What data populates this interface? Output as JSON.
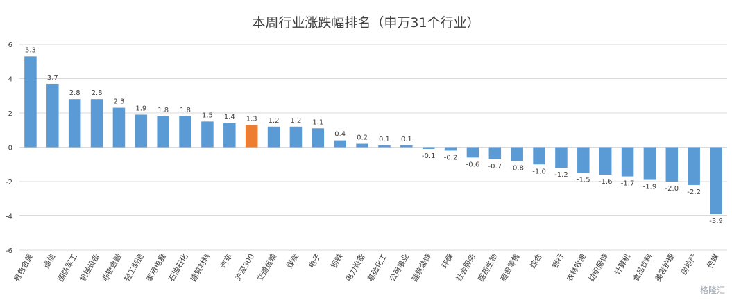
{
  "chart_data": {
    "type": "bar",
    "title": "本周行业涨跌幅排名（申万31个行业）",
    "xlabel": "",
    "ylabel": "",
    "ylim": [
      -6,
      6
    ],
    "yticks": [
      -6,
      -4,
      -2,
      0,
      2,
      4,
      6
    ],
    "grid": true,
    "legend": "none",
    "colors": {
      "default": "#5B9BD5",
      "highlight": "#ED7D31"
    },
    "highlight_category": "沪深300",
    "categories": [
      "有色金属",
      "通信",
      "国防军工",
      "机械设备",
      "非银金融",
      "轻工制造",
      "家用电器",
      "石油石化",
      "建筑材料",
      "汽车",
      "沪深300",
      "交通运输",
      "煤炭",
      "电子",
      "钢铁",
      "电力设备",
      "基础化工",
      "公用事业",
      "建筑装饰",
      "环保",
      "社会服务",
      "医药生物",
      "商贸零售",
      "综合",
      "银行",
      "农林牧渔",
      "纺织服饰",
      "计算机",
      "食品饮料",
      "美容护理",
      "房地产",
      "传媒"
    ],
    "values": [
      5.3,
      3.7,
      2.8,
      2.8,
      2.3,
      1.9,
      1.8,
      1.8,
      1.5,
      1.4,
      1.3,
      1.2,
      1.2,
      1.1,
      0.4,
      0.2,
      0.1,
      0.1,
      -0.1,
      -0.2,
      -0.6,
      -0.7,
      -0.8,
      -1.0,
      -1.2,
      -1.5,
      -1.6,
      -1.7,
      -1.9,
      -2.0,
      -2.2,
      -3.9
    ],
    "data_labels": [
      "5.3",
      "3.7",
      "2.8",
      "2.8",
      "2.3",
      "1.9",
      "1.8",
      "1.8",
      "1.5",
      "1.4",
      "1.3",
      "1.2",
      "1.2",
      "1.1",
      "0.4",
      "0.2",
      "0.1",
      "0.1",
      "-0.1",
      "-0.2",
      "-0.6",
      "-0.7",
      "-0.8",
      "-1.0",
      "-1.2",
      "-1.5",
      "-1.6",
      "-1.7",
      "-1.9",
      "-2.0",
      "-2.2",
      "-3.9"
    ]
  },
  "watermark": "格隆汇"
}
